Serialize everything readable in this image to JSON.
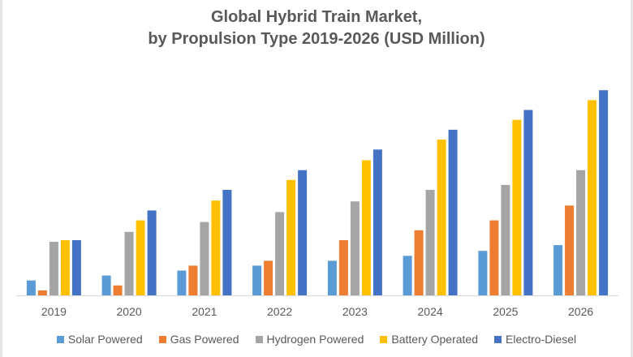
{
  "chart_data": {
    "type": "bar",
    "title": "Global Hybrid Train Market,",
    "subtitle": "by Propulsion Type 2019-2026 (USD Million)",
    "xlabel": "",
    "ylabel": "",
    "value_units": "relative (no y-axis shown)",
    "ylim": [
      0,
      260
    ],
    "grid": false,
    "legend_position": "bottom",
    "categories": [
      "2019",
      "2020",
      "2021",
      "2022",
      "2023",
      "2024",
      "2025",
      "2026"
    ],
    "series": [
      {
        "name": "Solar Powered",
        "color": "#5B9BD5",
        "values": [
          18,
          24,
          30,
          36,
          42,
          48,
          54,
          61
        ]
      },
      {
        "name": "Gas Powered",
        "color": "#ED7D31",
        "values": [
          6,
          12,
          36,
          42,
          67,
          79,
          91,
          109
        ]
      },
      {
        "name": "Hydrogen Powered",
        "color": "#A5A5A5",
        "values": [
          65,
          77,
          89,
          101,
          114,
          128,
          134,
          152
        ]
      },
      {
        "name": "Battery Operated",
        "color": "#FFC000",
        "values": [
          67,
          91,
          115,
          140,
          164,
          189,
          213,
          237
        ]
      },
      {
        "name": "Electro-Diesel",
        "color": "#4472C4",
        "values": [
          67,
          103,
          128,
          152,
          177,
          201,
          225,
          249
        ]
      }
    ]
  }
}
